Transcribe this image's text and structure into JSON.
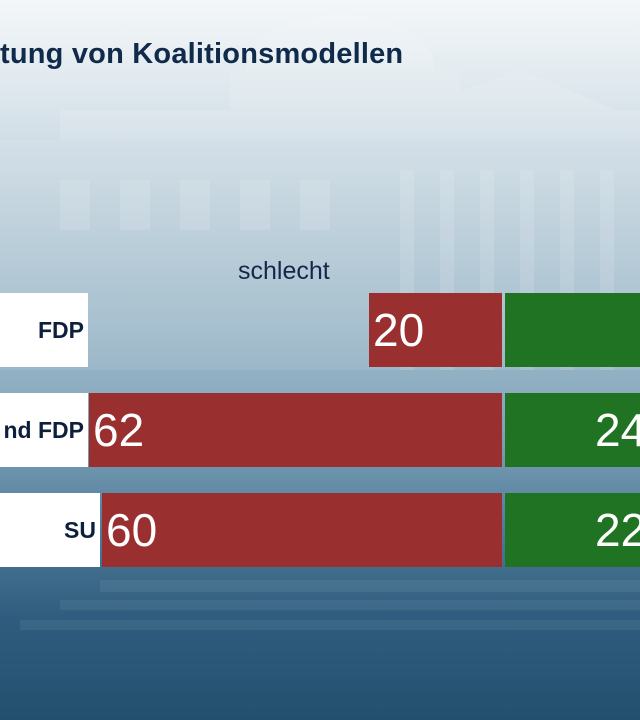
{
  "title": "tung von Koalitionsmodellen",
  "column_header": "schlecht",
  "colors": {
    "bad": "#9a2f2f",
    "good": "#1f7322",
    "label_bg": "#ffffff",
    "title": "#0f2a4a"
  },
  "chart_data": {
    "type": "bar",
    "orientation": "horizontal-diverging",
    "title": "tung von Koalitionsmodellen",
    "categories": [
      "FDP",
      "nd FDP",
      "SU"
    ],
    "series": [
      {
        "name": "schlecht",
        "values": [
          20,
          62,
          60
        ]
      },
      {
        "values": [
          null,
          24,
          22
        ]
      }
    ]
  }
}
